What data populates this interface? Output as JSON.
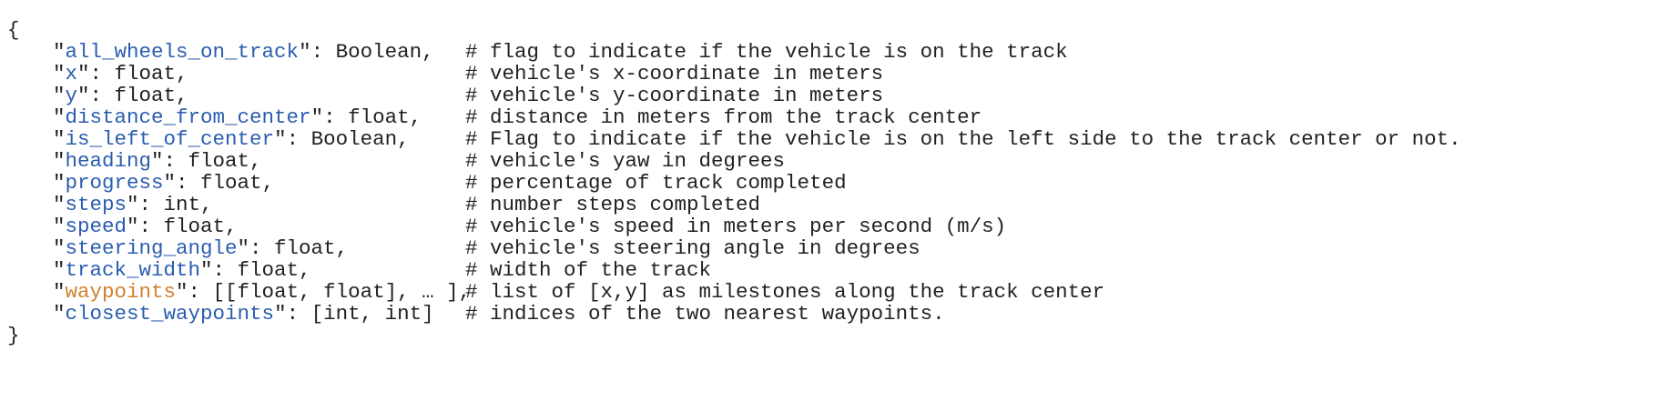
{
  "code": {
    "open": "{",
    "close": "}",
    "lines": [
      {
        "tokens": [
          "\"",
          "all_wheels_on_track",
          "\": Boolean,"
        ],
        "comment": "# flag to indicate if the vehicle is on the track",
        "color": "#2a5db0"
      },
      {
        "tokens": [
          "\"",
          "x",
          "\": float,"
        ],
        "comment": "# vehicle's x-coordinate in meters",
        "color": "#2a5db0"
      },
      {
        "tokens": [
          "\"",
          "y",
          "\": float,"
        ],
        "comment": "# vehicle's y-coordinate in meters",
        "color": "#2a5db0"
      },
      {
        "tokens": [
          "\"",
          "distance_from_center",
          "\": float,"
        ],
        "comment": "# distance in meters from the track center",
        "color": "#2a5db0"
      },
      {
        "tokens": [
          "\"",
          "is_left_of_center",
          "\": Boolean,"
        ],
        "comment": "# Flag to indicate if the vehicle is on the left side to the track center or not.",
        "color": "#2a5db0"
      },
      {
        "tokens": [
          "\"",
          "heading",
          "\": float,"
        ],
        "comment": "# vehicle's yaw in degrees",
        "color": "#2a5db0"
      },
      {
        "tokens": [
          "\"",
          "progress",
          "\": float,"
        ],
        "comment": "# percentage of track completed",
        "color": "#2a5db0"
      },
      {
        "tokens": [
          "\"",
          "steps",
          "\": int,"
        ],
        "comment": "# number steps completed",
        "color": "#2a5db0"
      },
      {
        "tokens": [
          "\"",
          "speed",
          "\": float,"
        ],
        "comment": "# vehicle's speed in meters per second (m/s)",
        "color": "#2a5db0"
      },
      {
        "tokens": [
          "\"",
          "steering_angle",
          "\": float,"
        ],
        "comment": "# vehicle's steering angle in degrees",
        "color": "#2a5db0"
      },
      {
        "tokens": [
          "\"",
          "track_width",
          "\": float,"
        ],
        "comment": "# width of the track",
        "color": "#2a5db0"
      },
      {
        "tokens": [
          "\"",
          "waypoints",
          "\": [[float, float], … ],"
        ],
        "comment": "# list of [x,y] as milestones along the track center",
        "color": "#d2802e"
      },
      {
        "tokens": [
          "\"",
          "closest_waypoints",
          "\": [int, int]"
        ],
        "comment": "# indices of the two nearest waypoints.",
        "color": "#2a5db0"
      }
    ]
  }
}
